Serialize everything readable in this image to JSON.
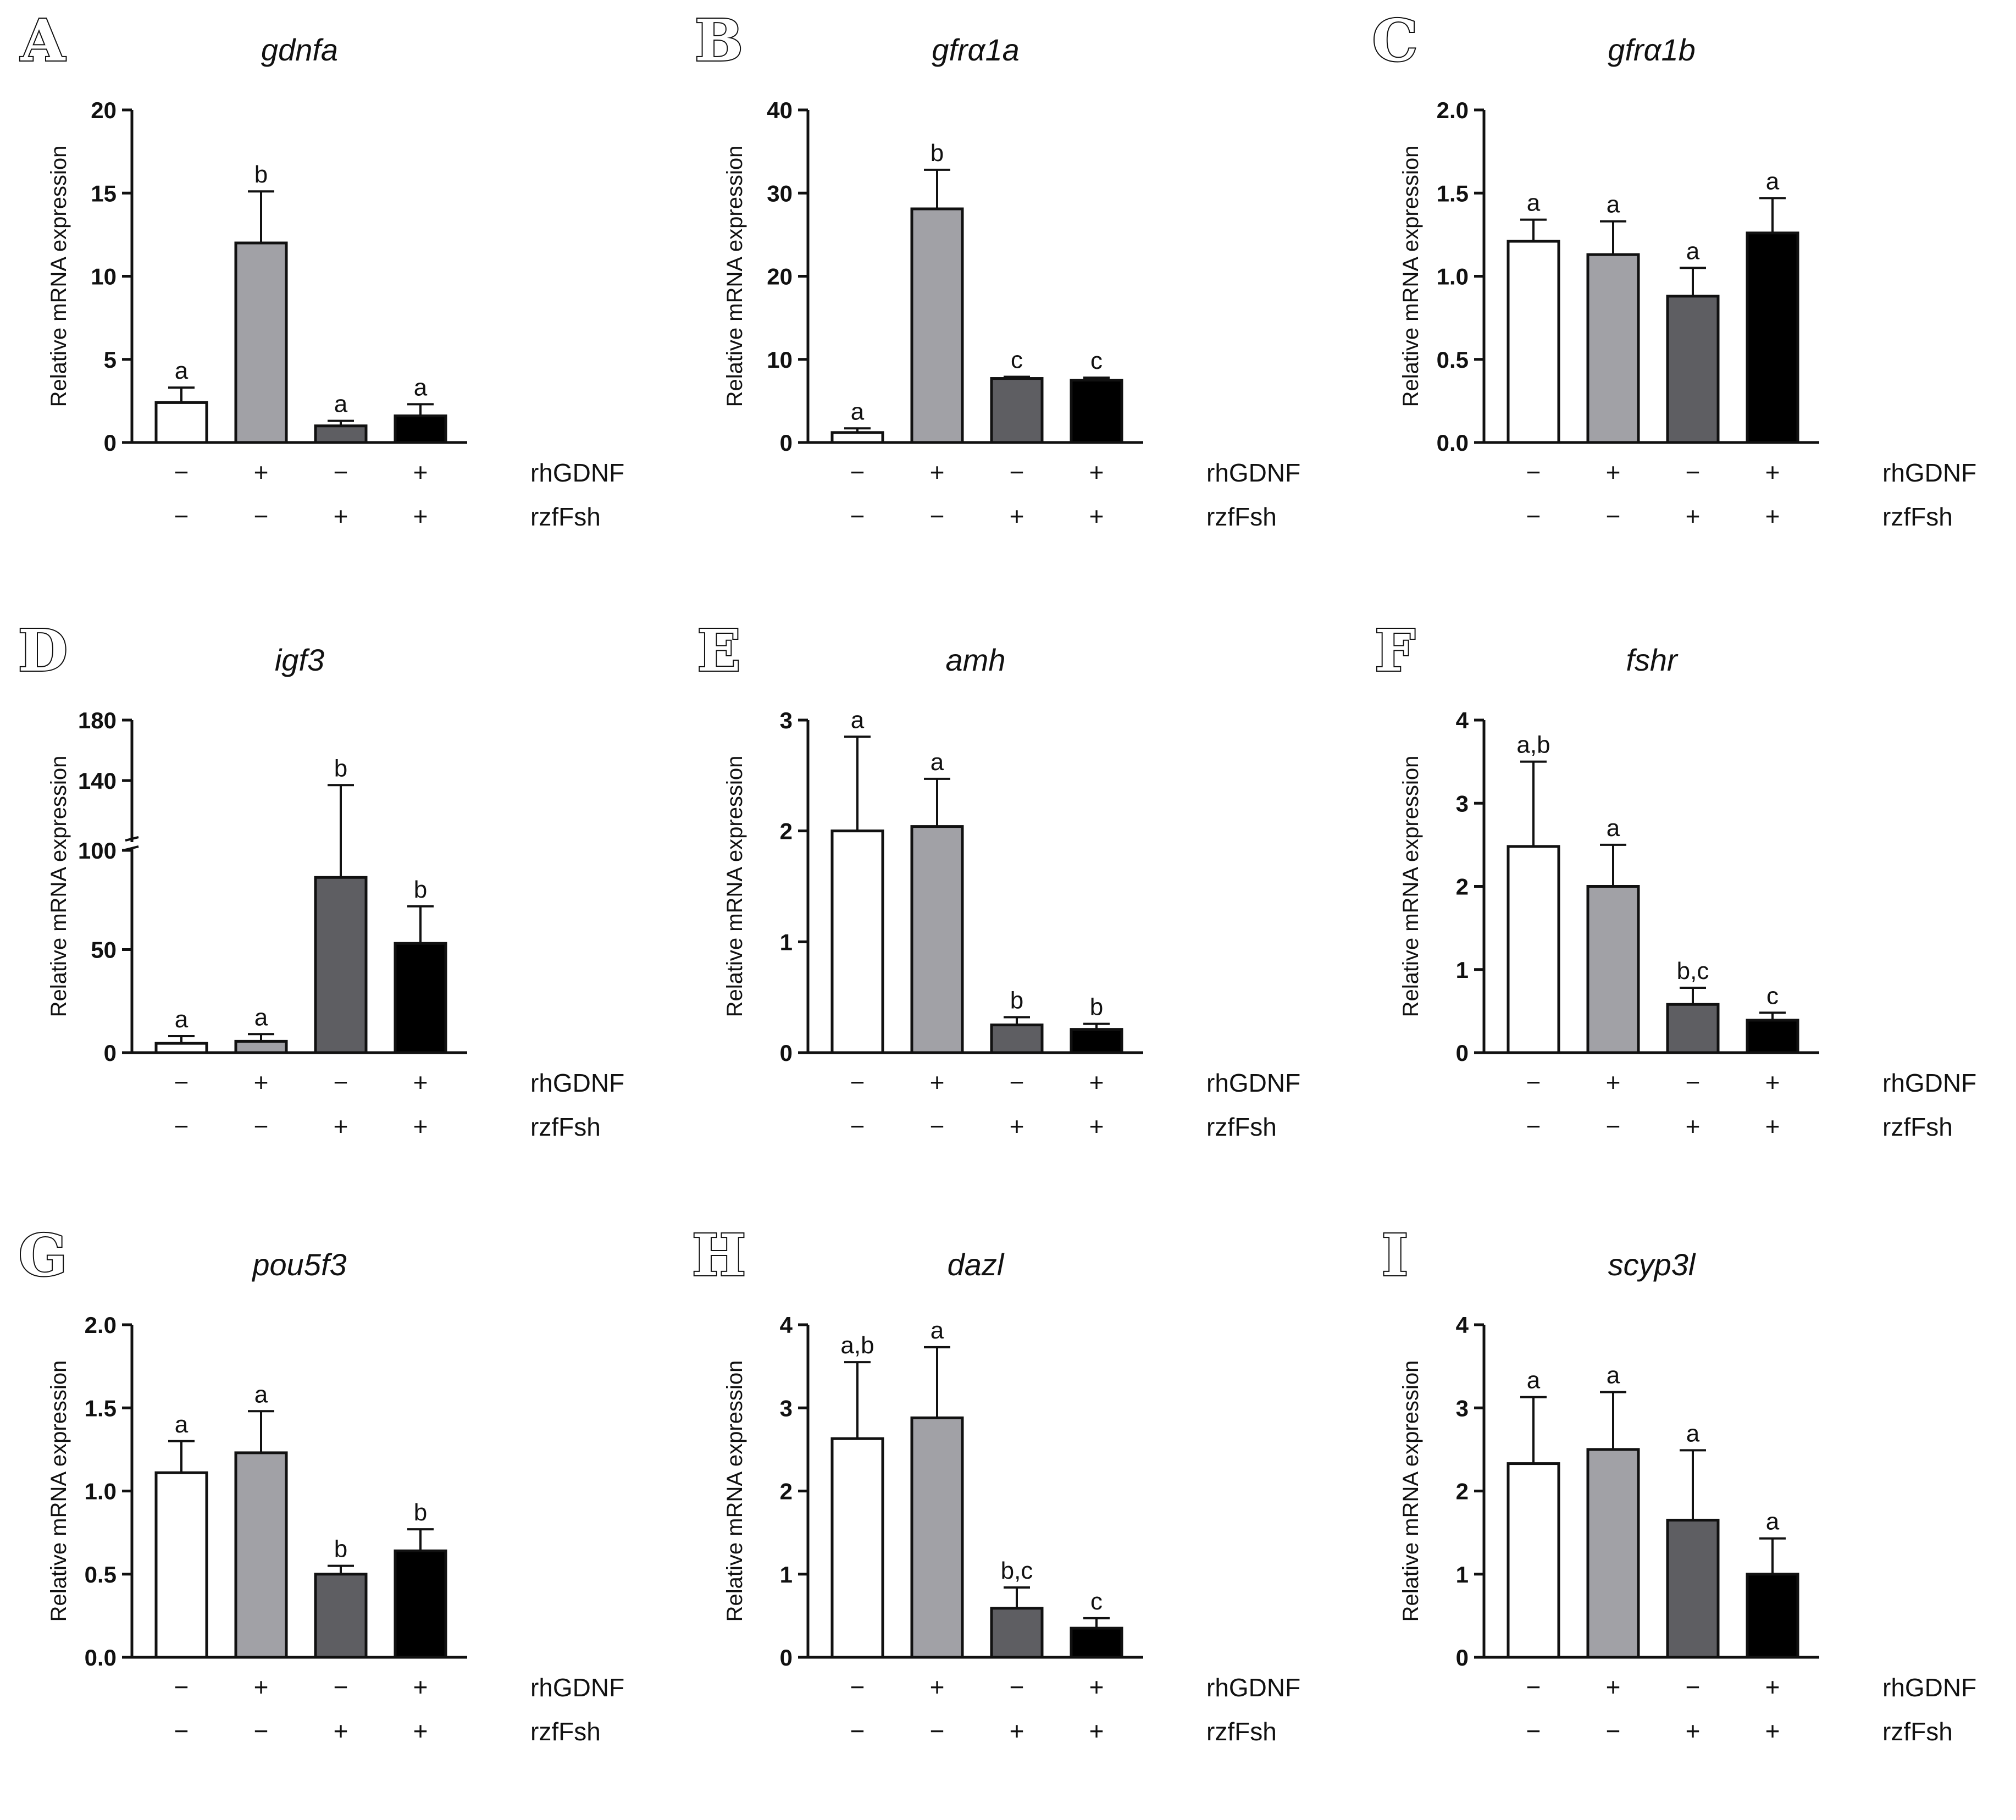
{
  "figure": {
    "x_groups": [
      "rhGDNF",
      "rzfFsh"
    ],
    "treatment_signs": {
      "rhGDNF": [
        "−",
        "+",
        "−",
        "+"
      ],
      "rzfFsh": [
        "−",
        "−",
        "+",
        "+"
      ]
    },
    "bar_fills": [
      "#ffffff",
      "#a1a1a6",
      "#5e5e62",
      "#000000"
    ]
  },
  "chart_data": [
    {
      "panel": "A",
      "title": "gdnfa",
      "type": "bar",
      "ylabel": "Relative mRNA expression",
      "ylim": [
        0,
        20
      ],
      "yticks": [
        0,
        5,
        10,
        15,
        20
      ],
      "ytick_labels": [
        "0",
        "5",
        "10",
        "15",
        "20"
      ],
      "values": [
        2.4,
        12.0,
        1.0,
        1.6
      ],
      "errors": [
        0.9,
        3.1,
        0.3,
        0.7
      ],
      "letters": [
        "a",
        "b",
        "a",
        "a"
      ]
    },
    {
      "panel": "B",
      "title": "gfrα1a",
      "type": "bar",
      "ylabel": "Relative mRNA expression",
      "ylim": [
        0,
        40
      ],
      "yticks": [
        0,
        10,
        20,
        30,
        40
      ],
      "ytick_labels": [
        "0",
        "10",
        "20",
        "30",
        "40"
      ],
      "values": [
        1.2,
        28.1,
        7.7,
        7.5
      ],
      "errors": [
        0.5,
        4.7,
        0.2,
        0.3
      ],
      "letters": [
        "a",
        "b",
        "c",
        "c"
      ]
    },
    {
      "panel": "C",
      "title": "gfrα1b",
      "type": "bar",
      "ylabel": "Relative mRNA expression",
      "ylim": [
        0,
        2.0
      ],
      "yticks": [
        0,
        0.5,
        1.0,
        1.5,
        2.0
      ],
      "ytick_labels": [
        "0.0",
        "0.5",
        "1.0",
        "1.5",
        "2.0"
      ],
      "values": [
        1.21,
        1.13,
        0.88,
        1.26
      ],
      "errors": [
        0.13,
        0.2,
        0.17,
        0.21
      ],
      "letters": [
        "a",
        "a",
        "a",
        "a"
      ]
    },
    {
      "panel": "D",
      "title": "igf3",
      "type": "bar",
      "ylabel": "Relative mRNA expression",
      "y_broken_axis": {
        "lower_range": [
          0,
          100
        ],
        "upper_range": [
          100,
          180
        ]
      },
      "yticks": [
        0,
        50,
        100,
        140,
        180
      ],
      "ytick_labels": [
        "0",
        "50",
        "100",
        "140",
        "180"
      ],
      "values": [
        4.5,
        5.5,
        85,
        53
      ],
      "errors": [
        3.5,
        3.5,
        52,
        18
      ],
      "letters": [
        "a",
        "a",
        "b",
        "b"
      ]
    },
    {
      "panel": "E",
      "title": "amh",
      "type": "bar",
      "ylabel": "Relative mRNA expression",
      "ylim": [
        0,
        3
      ],
      "yticks": [
        0,
        1,
        2,
        3
      ],
      "ytick_labels": [
        "0",
        "1",
        "2",
        "3"
      ],
      "values": [
        2.0,
        2.04,
        0.25,
        0.21
      ],
      "errors": [
        0.85,
        0.43,
        0.07,
        0.05
      ],
      "letters": [
        "a",
        "a",
        "b",
        "b"
      ]
    },
    {
      "panel": "F",
      "title": "fshr",
      "type": "bar",
      "ylabel": "Relative mRNA expression",
      "ylim": [
        0,
        4
      ],
      "yticks": [
        0,
        1,
        2,
        3,
        4
      ],
      "ytick_labels": [
        "0",
        "1",
        "2",
        "3",
        "4"
      ],
      "values": [
        2.48,
        2.0,
        0.58,
        0.39
      ],
      "errors": [
        1.02,
        0.5,
        0.2,
        0.09
      ],
      "letters": [
        "a,b",
        "a",
        "b,c",
        "c"
      ]
    },
    {
      "panel": "G",
      "title": "pou5f3",
      "type": "bar",
      "ylabel": "Relative mRNA expression",
      "ylim": [
        0,
        2.0
      ],
      "yticks": [
        0,
        0.5,
        1.0,
        1.5,
        2.0
      ],
      "ytick_labels": [
        "0.0",
        "0.5",
        "1.0",
        "1.5",
        "2.0"
      ],
      "values": [
        1.11,
        1.23,
        0.5,
        0.64
      ],
      "errors": [
        0.19,
        0.25,
        0.05,
        0.13
      ],
      "letters": [
        "a",
        "a",
        "b",
        "b"
      ]
    },
    {
      "panel": "H",
      "title": "dazl",
      "type": "bar",
      "ylabel": "Relative mRNA expression",
      "ylim": [
        0,
        4
      ],
      "yticks": [
        0,
        1,
        2,
        3,
        4
      ],
      "ytick_labels": [
        "0",
        "1",
        "2",
        "3",
        "4"
      ],
      "values": [
        2.63,
        2.88,
        0.59,
        0.35
      ],
      "errors": [
        0.92,
        0.85,
        0.25,
        0.12
      ],
      "letters": [
        "a,b",
        "a",
        "b,c",
        "c"
      ]
    },
    {
      "panel": "I",
      "title": "scyp3l",
      "type": "bar",
      "ylabel": "Relative mRNA expression",
      "ylim": [
        0,
        4
      ],
      "yticks": [
        0,
        1,
        2,
        3,
        4
      ],
      "ytick_labels": [
        "0",
        "1",
        "2",
        "3",
        "4"
      ],
      "values": [
        2.33,
        2.5,
        1.65,
        1.0
      ],
      "errors": [
        0.8,
        0.69,
        0.84,
        0.43
      ],
      "letters": [
        "a",
        "a",
        "a",
        "a"
      ]
    }
  ]
}
